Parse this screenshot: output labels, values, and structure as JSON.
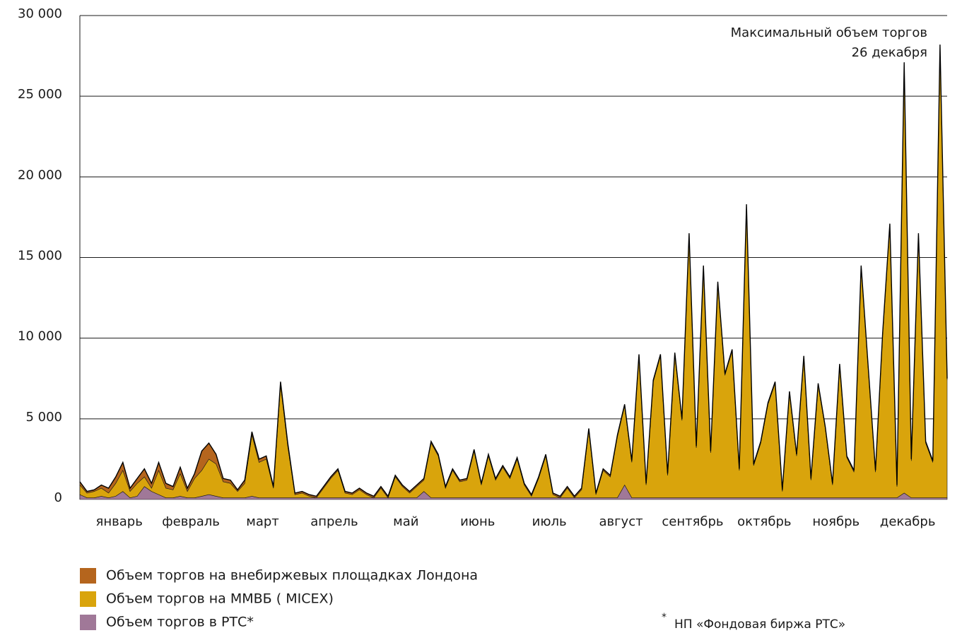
{
  "chart_data": {
    "type": "area",
    "stacked": true,
    "annotations": [
      "Максимальный объем торгов",
      "26 декабря"
    ],
    "footnote": "НП «Фондовая биржа РТС»",
    "footnote_mark": "*",
    "grid": true,
    "ylim": [
      0,
      30000
    ],
    "yticks": [
      0,
      {
        "value": 5000,
        "label": "5 000"
      },
      {
        "value": 10000,
        "label": "10 000"
      },
      {
        "value": 15000,
        "label": "15 000"
      },
      {
        "value": 20000,
        "label": "20 000"
      },
      {
        "value": 25000,
        "label": "25 000"
      },
      {
        "value": 30000,
        "label": "30 000"
      }
    ],
    "categories": [
      null,
      null,
      null,
      null,
      null,
      "январь",
      null,
      null,
      null,
      null,
      null,
      null,
      null,
      null,
      null,
      "февраль",
      null,
      null,
      null,
      null,
      null,
      null,
      null,
      null,
      null,
      "март",
      null,
      null,
      null,
      null,
      null,
      null,
      null,
      null,
      null,
      "апрель",
      null,
      null,
      null,
      null,
      null,
      null,
      null,
      null,
      null,
      "май",
      null,
      null,
      null,
      null,
      null,
      null,
      null,
      null,
      null,
      "июнь",
      null,
      null,
      null,
      null,
      null,
      null,
      null,
      null,
      null,
      "июль",
      null,
      null,
      null,
      null,
      null,
      null,
      null,
      null,
      null,
      "август",
      null,
      null,
      null,
      null,
      null,
      null,
      null,
      null,
      null,
      "сентябрь",
      null,
      null,
      null,
      null,
      null,
      null,
      null,
      null,
      null,
      "октябрь",
      null,
      null,
      null,
      null,
      null,
      null,
      null,
      null,
      null,
      "ноябрь",
      null,
      null,
      null,
      null,
      null,
      null,
      null,
      null,
      null,
      "декабрь",
      null,
      null,
      null,
      null,
      null,
      null
    ],
    "series": [
      {
        "name": "Объем торгов на внебиржевых площадках Лондона",
        "color": "#b5651d",
        "values": [
          200,
          100,
          100,
          200,
          300,
          400,
          500,
          200,
          300,
          500,
          300,
          500,
          300,
          200,
          400,
          200,
          300,
          1200,
          1000,
          600,
          200,
          200,
          100,
          200,
          200,
          200,
          200,
          100,
          200,
          200,
          100,
          100,
          100,
          100,
          100,
          100,
          100,
          100,
          100,
          100,
          100,
          100,
          100,
          100,
          100,
          100,
          100,
          100,
          100,
          100,
          100,
          100,
          100,
          100,
          100,
          100,
          100,
          100,
          100,
          100,
          100,
          100,
          100,
          100,
          100,
          100,
          100,
          100,
          100,
          100,
          100,
          100,
          100,
          100,
          100,
          100,
          100,
          100,
          100,
          100,
          100,
          100,
          100,
          100,
          100,
          100,
          100,
          100,
          100,
          100,
          100,
          100,
          100,
          100,
          100,
          100,
          100,
          100,
          100,
          100,
          100,
          100,
          100,
          100,
          100,
          100,
          100,
          100,
          100,
          100,
          100,
          100,
          100,
          100,
          100,
          100,
          100,
          100,
          100,
          100,
          100,
          100
        ]
      },
      {
        "name": "Объем торгов на ММВБ ( MICEX)",
        "color": "#d9a40c",
        "values": [
          600,
          300,
          400,
          500,
          300,
          800,
          1300,
          400,
          800,
          600,
          200,
          1500,
          600,
          500,
          1400,
          400,
          1200,
          1600,
          2200,
          2000,
          1000,
          900,
          400,
          900,
          3800,
          2200,
          2400,
          600,
          7000,
          3200,
          200,
          300,
          100,
          0,
          600,
          1200,
          1700,
          300,
          200,
          500,
          200,
          0,
          600,
          0,
          1300,
          700,
          300,
          700,
          700,
          3400,
          2600,
          600,
          1700,
          1000,
          1100,
          2900,
          800,
          2600,
          1100,
          1900,
          1200,
          2400,
          800,
          100,
          1200,
          2600,
          200,
          0,
          600,
          0,
          500,
          4200,
          200,
          1700,
          1300,
          3800,
          4900,
          2200,
          8800,
          800,
          7200,
          8800,
          1400,
          8900,
          4800,
          16300,
          3100,
          14300,
          2800,
          13300,
          7600,
          9100,
          1700,
          18100,
          2000,
          3400,
          5800,
          7100,
          400,
          6500,
          2600,
          8700,
          1100,
          7000,
          4300,
          800,
          8200,
          2500,
          1600,
          14300,
          7900,
          1600,
          10100,
          16900,
          700,
          26600,
          2300,
          16300,
          3400,
          2200,
          28000,
          7300
        ]
      },
      {
        "name": "Объем торгов в РТС*",
        "color": "#a07898",
        "values": [
          300,
          100,
          100,
          200,
          100,
          200,
          500,
          100,
          200,
          800,
          500,
          300,
          100,
          100,
          200,
          100,
          100,
          200,
          300,
          200,
          100,
          100,
          100,
          100,
          200,
          100,
          100,
          100,
          100,
          100,
          100,
          100,
          100,
          100,
          100,
          100,
          100,
          100,
          100,
          100,
          100,
          100,
          100,
          100,
          100,
          100,
          100,
          100,
          500,
          100,
          100,
          100,
          100,
          100,
          100,
          100,
          100,
          100,
          100,
          100,
          100,
          100,
          100,
          100,
          100,
          100,
          100,
          100,
          100,
          100,
          100,
          100,
          100,
          100,
          100,
          100,
          900,
          100,
          100,
          100,
          100,
          100,
          100,
          100,
          100,
          100,
          100,
          100,
          100,
          100,
          100,
          100,
          100,
          100,
          100,
          100,
          100,
          100,
          100,
          100,
          100,
          100,
          100,
          100,
          100,
          100,
          100,
          100,
          100,
          100,
          100,
          100,
          100,
          100,
          100,
          400,
          100,
          100,
          100,
          100,
          100,
          100
        ]
      }
    ]
  }
}
